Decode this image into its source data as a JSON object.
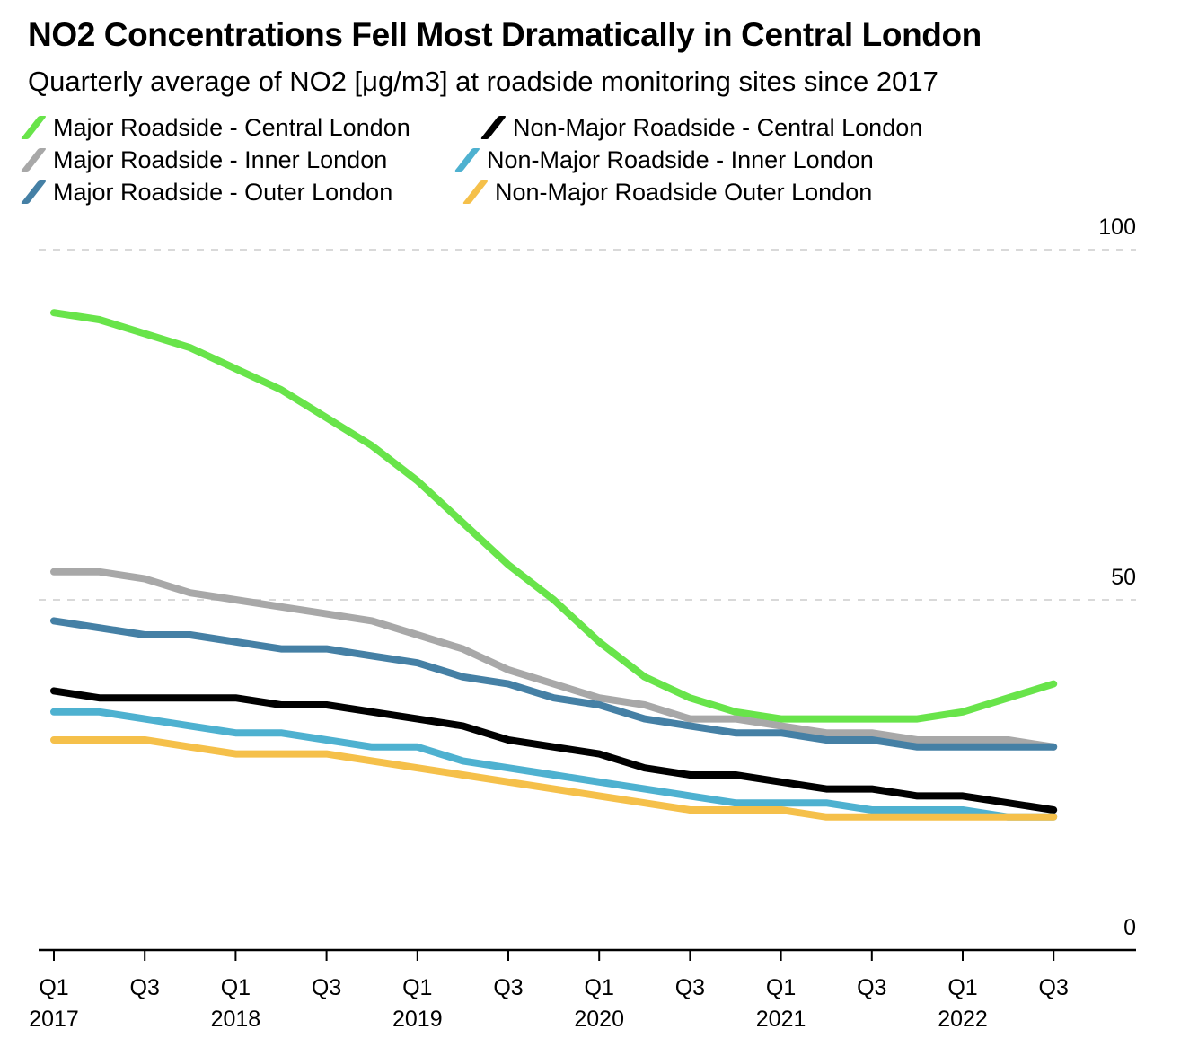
{
  "chart_data": {
    "type": "line",
    "title": "NO2 Concentrations Fell Most Dramatically in Central London",
    "subtitle": "Quarterly average of NO2 [μg/m3] at roadside monitoring sites since 2017",
    "xlabel": "",
    "ylabel": "",
    "ylim": [
      0,
      100
    ],
    "yticks": [
      0,
      50,
      100
    ],
    "grid": true,
    "legend_position": "top-left",
    "x": [
      "Q1 2017",
      "Q2 2017",
      "Q3 2017",
      "Q4 2017",
      "Q1 2018",
      "Q2 2018",
      "Q3 2018",
      "Q4 2018",
      "Q1 2019",
      "Q2 2019",
      "Q3 2019",
      "Q4 2019",
      "Q1 2020",
      "Q2 2020",
      "Q3 2020",
      "Q4 2020",
      "Q1 2021",
      "Q2 2021",
      "Q3 2021",
      "Q4 2021",
      "Q1 2022",
      "Q2 2022",
      "Q3 2022"
    ],
    "x_ticks": [
      {
        "index": 0,
        "quarter": "Q1",
        "year": "2017"
      },
      {
        "index": 2,
        "quarter": "Q3",
        "year": ""
      },
      {
        "index": 4,
        "quarter": "Q1",
        "year": "2018"
      },
      {
        "index": 6,
        "quarter": "Q3",
        "year": ""
      },
      {
        "index": 8,
        "quarter": "Q1",
        "year": "2019"
      },
      {
        "index": 10,
        "quarter": "Q3",
        "year": ""
      },
      {
        "index": 12,
        "quarter": "Q1",
        "year": "2020"
      },
      {
        "index": 14,
        "quarter": "Q3",
        "year": ""
      },
      {
        "index": 16,
        "quarter": "Q1",
        "year": "2021"
      },
      {
        "index": 18,
        "quarter": "Q3",
        "year": ""
      },
      {
        "index": 20,
        "quarter": "Q1",
        "year": "2022"
      },
      {
        "index": 22,
        "quarter": "Q3",
        "year": ""
      }
    ],
    "series": [
      {
        "name": "Major Roadside - Central London",
        "color": "#68e44a",
        "values": [
          91,
          90,
          88,
          86,
          83,
          80,
          76,
          72,
          67,
          61,
          55,
          50,
          44,
          39,
          36,
          34,
          33,
          33,
          33,
          33,
          34,
          36,
          38
        ]
      },
      {
        "name": "Non-Major Roadside - Central London",
        "color": "#000000",
        "values": [
          37,
          36,
          36,
          36,
          36,
          35,
          35,
          34,
          33,
          32,
          30,
          29,
          28,
          26,
          25,
          25,
          24,
          23,
          23,
          22,
          22,
          21,
          20
        ]
      },
      {
        "name": "Major Roadside - Inner London",
        "color": "#a8a8a8",
        "values": [
          54,
          54,
          53,
          51,
          50,
          49,
          48,
          47,
          45,
          43,
          40,
          38,
          36,
          35,
          33,
          33,
          32,
          31,
          31,
          30,
          30,
          30,
          29
        ]
      },
      {
        "name": "Non-Major Roadside - Inner London",
        "color": "#4eb1d0",
        "values": [
          34,
          34,
          33,
          32,
          31,
          31,
          30,
          29,
          29,
          27,
          26,
          25,
          24,
          23,
          22,
          21,
          21,
          21,
          20,
          20,
          20,
          19,
          19
        ]
      },
      {
        "name": "Major Roadside - Outer London",
        "color": "#4580a5",
        "values": [
          47,
          46,
          45,
          45,
          44,
          43,
          43,
          42,
          41,
          39,
          38,
          36,
          35,
          33,
          32,
          31,
          31,
          30,
          30,
          29,
          29,
          29,
          29
        ]
      },
      {
        "name": "Non-Major Roadside Outer London",
        "color": "#f5c04a",
        "values": [
          30,
          30,
          30,
          29,
          28,
          28,
          28,
          27,
          26,
          25,
          24,
          23,
          22,
          21,
          20,
          20,
          20,
          19,
          19,
          19,
          19,
          19,
          19
        ]
      }
    ]
  }
}
